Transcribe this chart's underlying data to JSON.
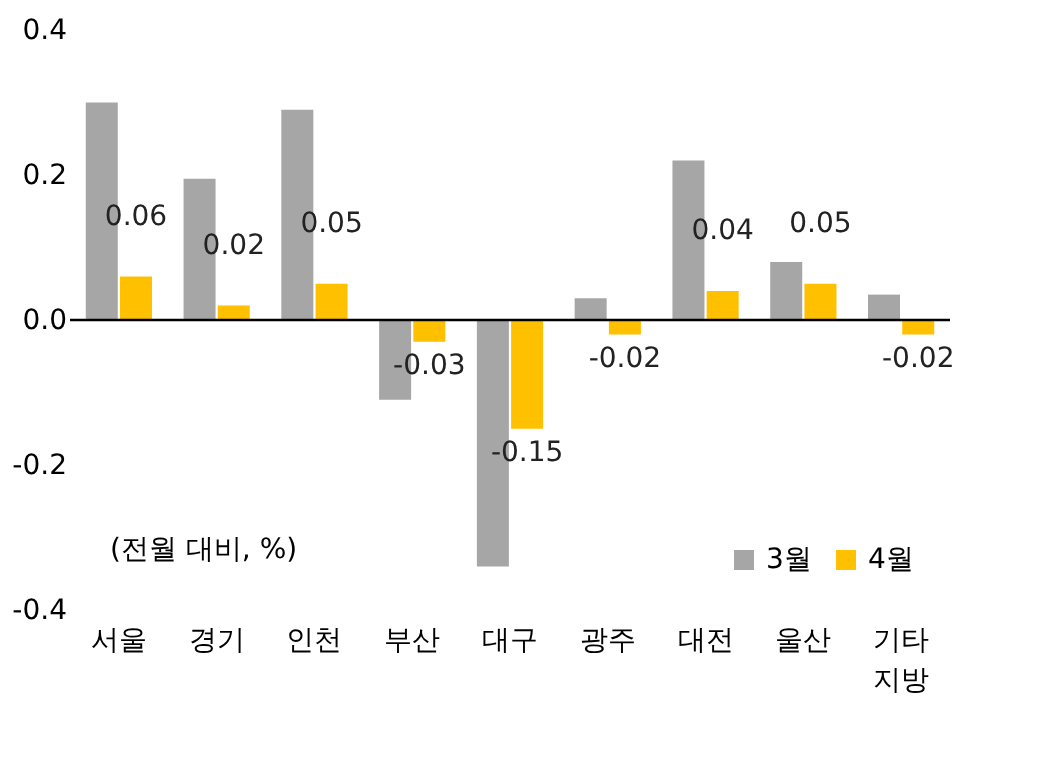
{
  "chart_data": {
    "type": "bar",
    "categories": [
      "서울",
      "경기",
      "인천",
      "부산",
      "대구",
      "광주",
      "대전",
      "울산",
      "기타\n지방"
    ],
    "series": [
      {
        "name": "3월",
        "color": "#a6a6a6",
        "values": [
          0.3,
          0.195,
          0.29,
          -0.11,
          -0.34,
          0.03,
          0.22,
          0.08,
          0.035
        ]
      },
      {
        "name": "4월",
        "color": "#ffc000",
        "values": [
          0.06,
          0.02,
          0.05,
          -0.03,
          -0.15,
          -0.02,
          0.04,
          0.05,
          -0.02
        ],
        "value_labels": [
          "0.06",
          "0.02",
          "0.05",
          "-0.03",
          "-0.15",
          "-0.02",
          "0.04",
          "0.05",
          "-0.02"
        ]
      }
    ],
    "ylim": [
      -0.4,
      0.4
    ],
    "yticks": [
      {
        "value": 0.4,
        "label": "0.4"
      },
      {
        "value": 0.2,
        "label": "0.2"
      },
      {
        "value": 0.0,
        "label": "0.0"
      },
      {
        "value": -0.2,
        "label": "-0.2"
      },
      {
        "value": -0.4,
        "label": "-0.4"
      }
    ],
    "legend": "bottom right",
    "annotations": [
      "(전월 대비, %)"
    ]
  }
}
